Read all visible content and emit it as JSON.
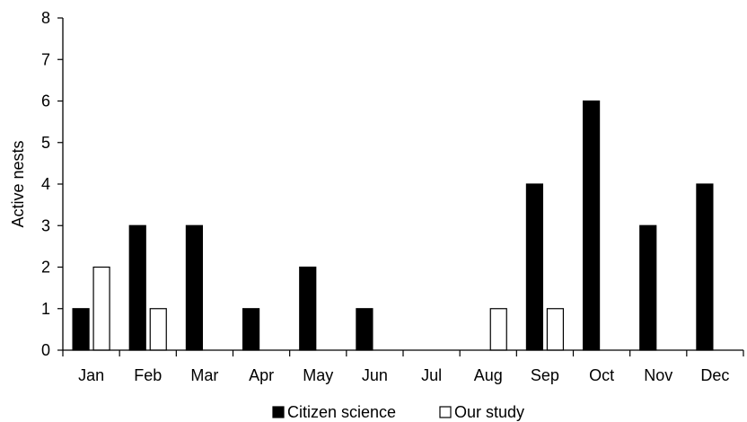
{
  "chart_data": {
    "type": "bar",
    "title": "",
    "xlabel": "",
    "ylabel": "Active nests",
    "ylim": [
      0,
      8
    ],
    "yticks": [
      0,
      1,
      2,
      3,
      4,
      5,
      6,
      7,
      8
    ],
    "grid": false,
    "legend_position": "bottom-center",
    "categories": [
      "Jan",
      "Feb",
      "Mar",
      "Apr",
      "May",
      "Jun",
      "Jul",
      "Aug",
      "Sep",
      "Oct",
      "Nov",
      "Dec"
    ],
    "series": [
      {
        "name": "Citizen science",
        "color": "#000000",
        "values": [
          1,
          3,
          3,
          1,
          2,
          1,
          0,
          0,
          4,
          6,
          3,
          4
        ]
      },
      {
        "name": "Our study",
        "color": "#ffffff",
        "values": [
          2,
          1,
          0,
          0,
          0,
          0,
          0,
          1,
          1,
          0,
          0,
          0
        ]
      }
    ]
  }
}
